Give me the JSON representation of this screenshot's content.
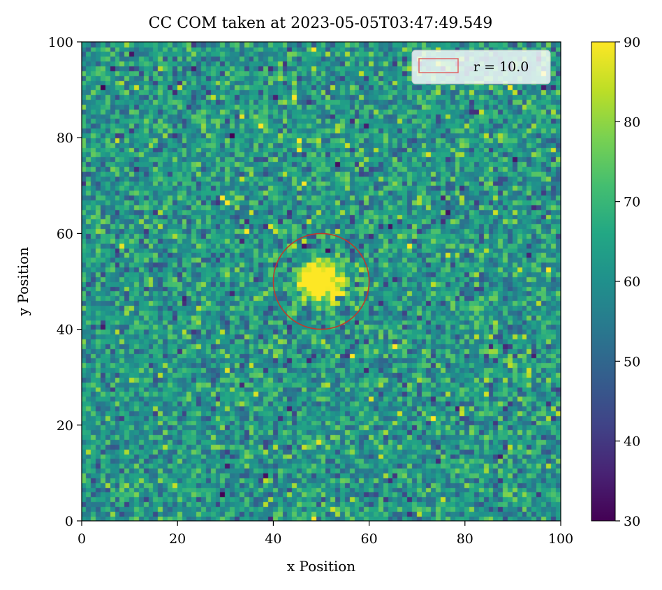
{
  "chart_data": {
    "type": "heatmap",
    "title": "CC COM taken at 2023-05-05T03:47:49.549",
    "xlabel": "x Position",
    "ylabel": "y Position",
    "xlim": [
      0,
      100
    ],
    "ylim": [
      0,
      100
    ],
    "xticks": [
      "0",
      "20",
      "40",
      "60",
      "80",
      "100"
    ],
    "yticks": [
      "0",
      "20",
      "40",
      "60",
      "80",
      "100"
    ],
    "grid_size": 100,
    "colormap": "viridis",
    "color_range": [
      30,
      90
    ],
    "colorbar_ticks": [
      "30",
      "40",
      "50",
      "60",
      "70",
      "80",
      "90"
    ],
    "background_mean": 62,
    "source_center": [
      50,
      50
    ],
    "source_peak": 90,
    "circle": {
      "center": [
        50,
        50
      ],
      "radius": 10.0,
      "color": "#c0392b"
    },
    "legend": {
      "label": "r = 10.0",
      "position": "upper right",
      "patch_color": "#e06666"
    }
  }
}
